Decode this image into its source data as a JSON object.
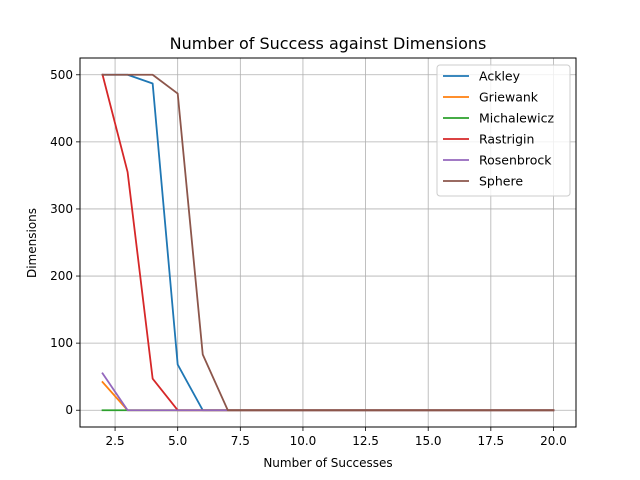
{
  "chart_data": {
    "type": "line",
    "title": "Number of Success against Dimensions",
    "xlabel": "Number of Successes",
    "ylabel": "Dimensions",
    "x": [
      2,
      3,
      4,
      5,
      6,
      7,
      8,
      9,
      10,
      11,
      12,
      13,
      14,
      15,
      16,
      17,
      18,
      19,
      20
    ],
    "xlim": [
      1.1,
      20.9
    ],
    "ylim": [
      -25,
      525
    ],
    "xticks": [
      2.5,
      5.0,
      7.5,
      10.0,
      12.5,
      15.0,
      17.5,
      20.0
    ],
    "xtick_labels": [
      "2.5",
      "5.0",
      "7.5",
      "10.0",
      "12.5",
      "15.0",
      "17.5",
      "20.0"
    ],
    "yticks": [
      0,
      100,
      200,
      300,
      400,
      500
    ],
    "ytick_labels": [
      "0",
      "100",
      "200",
      "300",
      "400",
      "500"
    ],
    "grid": true,
    "legend_position": "top-right",
    "series": [
      {
        "name": "Ackley",
        "color": "#1f77b4",
        "values": [
          500,
          500,
          487,
          68,
          0,
          0,
          0,
          0,
          0,
          0,
          0,
          0,
          0,
          0,
          0,
          0,
          0,
          0,
          0
        ]
      },
      {
        "name": "Griewank",
        "color": "#ff7f0e",
        "values": [
          42,
          0,
          0,
          0,
          0,
          0,
          0,
          0,
          0,
          0,
          0,
          0,
          0,
          0,
          0,
          0,
          0,
          0,
          0
        ]
      },
      {
        "name": "Michalewicz",
        "color": "#2ca02c",
        "values": [
          0,
          0,
          0,
          0,
          0,
          0,
          0,
          0,
          0,
          0,
          0,
          0,
          0,
          0,
          0,
          0,
          0,
          0,
          0
        ]
      },
      {
        "name": "Rastrigin",
        "color": "#d62728",
        "values": [
          500,
          355,
          47,
          0,
          0,
          0,
          0,
          0,
          0,
          0,
          0,
          0,
          0,
          0,
          0,
          0,
          0,
          0,
          0
        ]
      },
      {
        "name": "Rosenbrock",
        "color": "#9467bd",
        "values": [
          55,
          0,
          0,
          0,
          0,
          0,
          0,
          0,
          0,
          0,
          0,
          0,
          0,
          0,
          0,
          0,
          0,
          0,
          0
        ]
      },
      {
        "name": "Sphere",
        "color": "#8c564b",
        "values": [
          500,
          500,
          500,
          472,
          83,
          0,
          0,
          0,
          0,
          0,
          0,
          0,
          0,
          0,
          0,
          0,
          0,
          0,
          0
        ]
      }
    ]
  }
}
